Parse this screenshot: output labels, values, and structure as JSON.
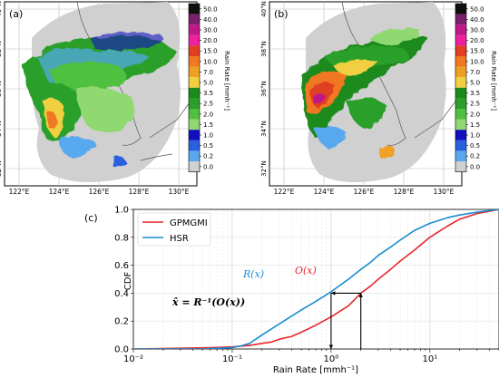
{
  "colorbar": {
    "ticks": [
      "50.0",
      "40.0",
      "30.0",
      "20.0",
      "15.0",
      "10.0",
      "7.0",
      "5.0",
      "3.5",
      "2.5",
      "2.0",
      "1.5",
      "1.0",
      "0.5",
      "0.2",
      "0.0"
    ],
    "colors": [
      "#101010",
      "#7a1f6b",
      "#c0168a",
      "#f01fa0",
      "#e04020",
      "#f07820",
      "#f0a020",
      "#f0d040",
      "#1a8a1a",
      "#2aa02a",
      "#50c040",
      "#90d870",
      "#1010c0",
      "#2a60e0",
      "#58a8f0",
      "#d0d0d0"
    ],
    "label": "Rain Rate [mmh⁻¹]"
  },
  "maps": {
    "lon_ticks": [
      "122°E",
      "124°E",
      "126°E",
      "128°E",
      "130°E"
    ],
    "lat_ticks": [
      "40°N",
      "38°N",
      "36°N",
      "34°N",
      "32°N"
    ],
    "panel_a": "(a)",
    "panel_b": "(b)"
  },
  "panel_c": "(c)",
  "chart_data": {
    "type": "line",
    "xscale": "log",
    "xlim": [
      0.01,
      50
    ],
    "ylim": [
      0,
      1.0
    ],
    "xlabel": "Rain Rate [mmh⁻¹]",
    "ylabel": "CDF",
    "x_ticks": [
      "10⁻²",
      "10⁻¹",
      "10⁰",
      "10¹"
    ],
    "y_ticks": [
      "0.0",
      "0.2",
      "0.4",
      "0.6",
      "0.8",
      "1.0"
    ],
    "legend_position": "top-left",
    "grid": true,
    "series": [
      {
        "name": "GPMGMI",
        "color": "#e8262b",
        "x": [
          0.01,
          0.03,
          0.06,
          0.1,
          0.15,
          0.2,
          0.25,
          0.3,
          0.4,
          0.5,
          0.7,
          1.0,
          1.5,
          2.0,
          2.5,
          3.0,
          4.0,
          5.0,
          7.0,
          10.0,
          15.0,
          20.0,
          30.0,
          50.0
        ],
        "y": [
          0.0,
          0.005,
          0.01,
          0.015,
          0.025,
          0.04,
          0.05,
          0.07,
          0.09,
          0.12,
          0.17,
          0.23,
          0.31,
          0.4,
          0.45,
          0.5,
          0.57,
          0.63,
          0.71,
          0.8,
          0.88,
          0.93,
          0.97,
          1.0
        ]
      },
      {
        "name": "HSR",
        "color": "#1a8cd0",
        "x": [
          0.01,
          0.05,
          0.1,
          0.12,
          0.15,
          0.2,
          0.3,
          0.5,
          0.7,
          1.0,
          1.5,
          2.0,
          2.5,
          3.0,
          4.0,
          5.0,
          7.0,
          10.0,
          15.0,
          20.0,
          30.0,
          50.0
        ],
        "y": [
          0.0,
          0.0,
          0.01,
          0.02,
          0.04,
          0.1,
          0.18,
          0.28,
          0.34,
          0.41,
          0.5,
          0.57,
          0.62,
          0.67,
          0.73,
          0.78,
          0.85,
          0.9,
          0.94,
          0.96,
          0.98,
          1.0
        ]
      }
    ],
    "annotations": {
      "r_label": "R(x)",
      "o_label": "O(x)",
      "formula": "x̂ = R⁻¹(O(x))"
    },
    "mapping_example": {
      "x_orig": 2.0,
      "cdf": 0.4,
      "x_hat": 1.0
    }
  }
}
